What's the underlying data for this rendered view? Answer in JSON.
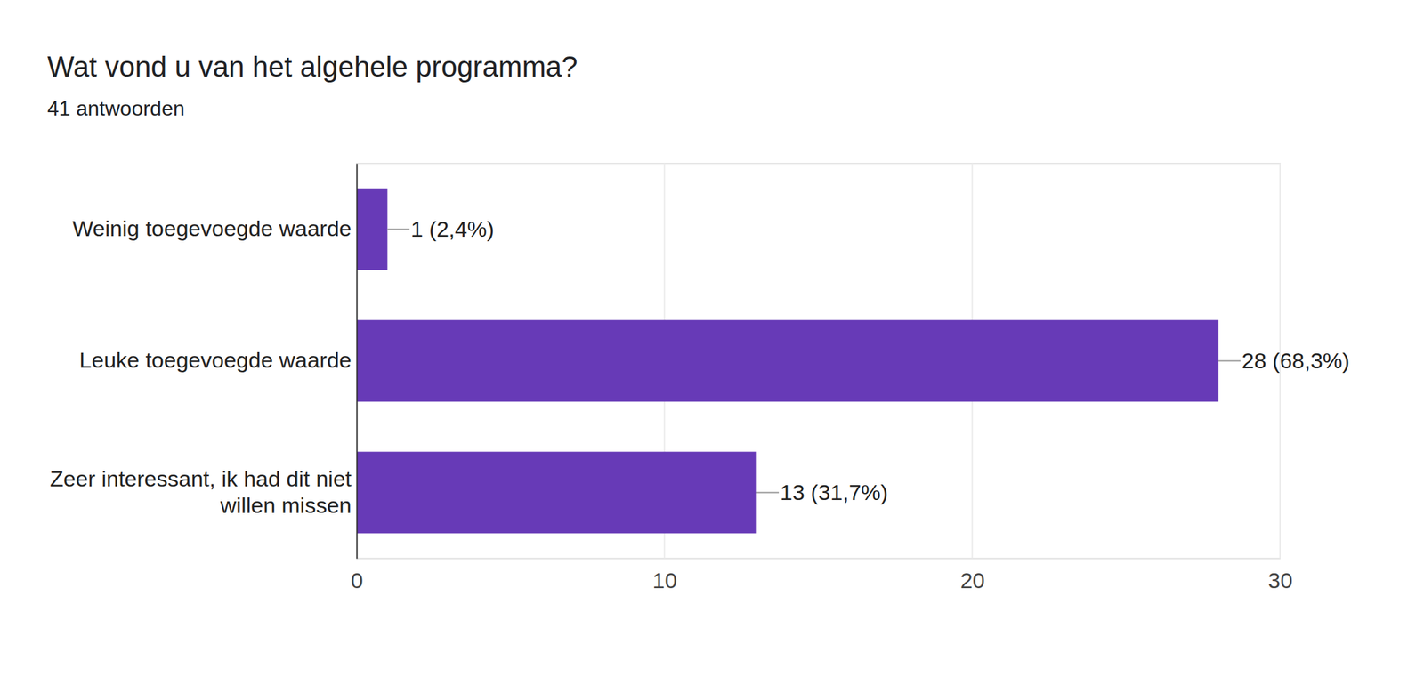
{
  "chart_data": {
    "type": "bar",
    "orientation": "horizontal",
    "title": "Wat vond u van het algehele programma?",
    "subtitle": "41 antwoorden",
    "categories": [
      "Weinig toegevoegde waarde",
      "Leuke toegevoegde waarde",
      "Zeer interessant, ik had dit niet willen missen"
    ],
    "values": [
      1,
      28,
      13
    ],
    "value_labels": [
      "1 (2,4%)",
      "28 (68,3%)",
      "13 (31,7%)"
    ],
    "color": "#673ab7",
    "xlim": [
      0,
      30
    ],
    "xticks": [
      0,
      10,
      20,
      30
    ],
    "grid": true,
    "data_labels": true
  }
}
